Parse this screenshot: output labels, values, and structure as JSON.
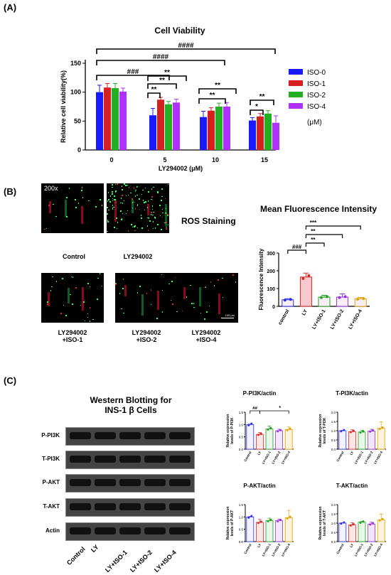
{
  "panels": {
    "a": "(A)",
    "b": "(B)",
    "c": "(C)"
  },
  "panel_a": {
    "title": "Cell Viability",
    "ylabel": "Relative cell viability(%)",
    "xlabel": "LY294002 (μM)",
    "unit_note": "(μM)",
    "sig": [
      "####",
      "####",
      "###",
      "**",
      "**",
      "**",
      "**",
      "**",
      "**",
      "*"
    ]
  },
  "panel_b": {
    "magnification": "200x",
    "ros_title": "ROS Staining",
    "scale_bar": "100 μm",
    "captions": [
      "Control",
      "LY294002",
      "LY294002\n+ISO-1",
      "LY294002\n+ISO-2",
      "LY294002\n+ISO-4"
    ],
    "mfi_title": "Mean Fluorescence Intensity",
    "sig": [
      "###",
      "**",
      "**",
      "***"
    ]
  },
  "panel_c": {
    "wb_title": "Western Blotting for\nINS-1 β Cells",
    "bands": [
      "P-PI3K",
      "T-PI3K",
      "P-AKT",
      "T-AKT",
      "Actin"
    ],
    "lanes": [
      "Control",
      "LY",
      "LY+ISO-1",
      "LY+ISO-2",
      "LY+ISO-4"
    ],
    "sig": [
      "##",
      "*"
    ]
  },
  "colors": {
    "iso0": "#1a1aff",
    "iso1": "#d62020",
    "iso2": "#22b022",
    "iso4": "#b030ff",
    "mfi": [
      "#2e2ee6",
      "#d62a2a",
      "#1fa01f",
      "#9b30e0",
      "#e0a000"
    ]
  },
  "chart_data": [
    {
      "type": "bar",
      "title": "Cell Viability",
      "xlabel": "LY294002 (μM)",
      "ylabel": "Relative cell viability(%)",
      "categories": [
        "0",
        "5",
        "10",
        "15"
      ],
      "ylim": [
        0,
        150
      ],
      "yticks": [
        0,
        50,
        100,
        150
      ],
      "legend_position": "right",
      "series": [
        {
          "name": "ISO-0",
          "values": [
            100,
            60,
            57,
            51
          ],
          "errors": [
            12,
            12,
            10,
            5
          ]
        },
        {
          "name": "ISO-1",
          "values": [
            108,
            87,
            68,
            58
          ],
          "errors": [
            7,
            4,
            5,
            5
          ]
        },
        {
          "name": "ISO-2",
          "values": [
            107,
            79,
            75,
            63
          ],
          "errors": [
            8,
            5,
            6,
            5
          ]
        },
        {
          "name": "ISO-4",
          "values": [
            101,
            82,
            75,
            47
          ],
          "errors": [
            6,
            6,
            7,
            12
          ]
        }
      ]
    },
    {
      "type": "bar",
      "title": "Mean Fluorescence Intensity",
      "ylabel": "Fluorescence Intensity",
      "categories": [
        "control",
        "LY",
        "LY+ISO-1",
        "LY+ISO-2",
        "LY+ISO-4"
      ],
      "values": [
        37,
        165,
        52,
        52,
        42
      ],
      "errors": [
        6,
        22,
        10,
        18,
        8
      ],
      "ylim": [
        0,
        300
      ],
      "yticks": [
        0,
        100,
        200,
        300
      ]
    },
    {
      "type": "bar",
      "title": "P-PI3K/actin",
      "ylabel": "Relative expression\nlevels of P-PI3K",
      "categories": [
        "Control",
        "LY",
        "LY+ISO-1",
        "LY+ISO-2",
        "LY+ISO-4"
      ],
      "values": [
        1.0,
        0.6,
        0.82,
        0.75,
        0.8
      ],
      "errors": [
        0.02,
        0.08,
        0.12,
        0.06,
        0.1
      ],
      "ylim": [
        0,
        1.5
      ],
      "yticks": [
        0.0,
        0.5,
        1.0,
        1.5
      ]
    },
    {
      "type": "bar",
      "title": "T-PI3K/actin",
      "ylabel": "Relative expression\nlevels of T-PI3K",
      "categories": [
        "Control",
        "LY",
        "LY+ISO-1",
        "LY+ISO-2",
        "LY+ISO-4"
      ],
      "values": [
        1.0,
        0.95,
        0.93,
        0.98,
        1.13
      ],
      "errors": [
        0.02,
        0.1,
        0.1,
        0.1,
        0.35
      ],
      "ylim": [
        0,
        2.0
      ],
      "yticks": [
        0.0,
        0.5,
        1.0,
        1.5,
        2.0
      ]
    },
    {
      "type": "bar",
      "title": "P-AKT/actin",
      "ylabel": "Relative expression\nlevels of P-AKT",
      "categories": [
        "Control",
        "LY",
        "LY+ISO-1",
        "LY+ISO-2",
        "LY+ISO-4"
      ],
      "values": [
        1.0,
        0.78,
        0.85,
        0.85,
        0.97
      ],
      "errors": [
        0.02,
        0.12,
        0.1,
        0.06,
        0.3
      ],
      "ylim": [
        0,
        1.5
      ],
      "yticks": [
        0.0,
        0.5,
        1.0,
        1.5
      ]
    },
    {
      "type": "bar",
      "title": "T-AKT/actin",
      "ylabel": "Relative expression\nlevels of T-AKT",
      "categories": [
        "Control",
        "LY",
        "LY+ISO-1",
        "LY+ISO-2",
        "LY+ISO-4"
      ],
      "values": [
        1.0,
        0.9,
        1.05,
        0.95,
        1.18
      ],
      "errors": [
        0.02,
        0.12,
        0.05,
        0.1,
        0.3
      ],
      "ylim": [
        0,
        2.0
      ],
      "yticks": [
        0.0,
        0.5,
        1.0,
        1.5,
        2.0
      ]
    }
  ]
}
